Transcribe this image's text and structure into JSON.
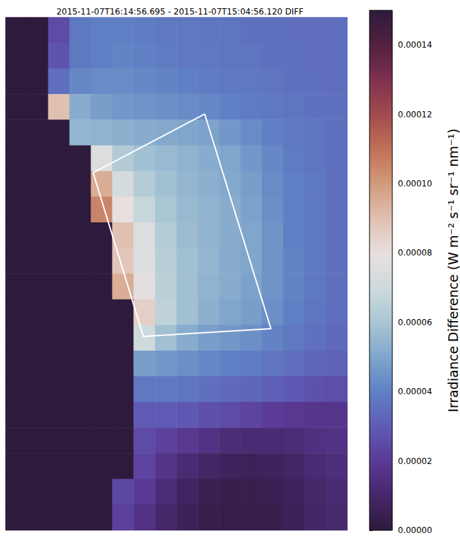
{
  "chart_data": {
    "type": "heatmap",
    "title": "2015-11-07T16:14:56.695 - 2015-11-07T15:04:56.120 DIFF",
    "tick_labels": false,
    "cells": [
      [
        0,
        0,
        2.5e-05,
        3.8e-05,
        4e-05,
        4e-05,
        3.9e-05,
        3.8e-05,
        3.8e-05,
        3.7e-05,
        3.7e-05,
        3.6e-05,
        3.6e-05,
        3.5e-05,
        3.5e-05,
        3.5e-05
      ],
      [
        0,
        0,
        2.8e-05,
        3.8e-05,
        4e-05,
        4.1e-05,
        4e-05,
        3.9e-05,
        3.8e-05,
        3.8e-05,
        3.7e-05,
        3.7e-05,
        3.6e-05,
        3.6e-05,
        3.5e-05,
        3.5e-05
      ],
      [
        0,
        0,
        3.5e-05,
        4.2e-05,
        4.3e-05,
        4.3e-05,
        4.2e-05,
        4.1e-05,
        4e-05,
        3.9e-05,
        3.8e-05,
        3.8e-05,
        3.7e-05,
        3.6e-05,
        3.6e-05,
        3.5e-05
      ],
      [
        0,
        0,
        9e-05,
        5.2e-05,
        4.8e-05,
        4.6e-05,
        4.5e-05,
        4.4e-05,
        4.3e-05,
        4.2e-05,
        4e-05,
        3.9e-05,
        3.8e-05,
        3.7e-05,
        3.6e-05,
        3.6e-05
      ],
      [
        0,
        0,
        0,
        5.5e-05,
        5.4e-05,
        5.3e-05,
        5.2e-05,
        5.1e-05,
        5e-05,
        4.9e-05,
        4.6e-05,
        4.3e-05,
        4e-05,
        3.8e-05,
        3.7e-05,
        3.6e-05
      ],
      [
        0,
        0,
        0,
        0,
        7.5e-05,
        6.2e-05,
        5.8e-05,
        5.6e-05,
        5.4e-05,
        5.2e-05,
        5e-05,
        4.6e-05,
        4.2e-05,
        3.9e-05,
        3.7e-05,
        3.6e-05
      ],
      [
        0,
        0,
        0,
        0,
        9.5e-05,
        7.2e-05,
        6.3e-05,
        5.8e-05,
        5.5e-05,
        5.3e-05,
        5.1e-05,
        4.8e-05,
        4.3e-05,
        4e-05,
        3.8e-05,
        3.6e-05
      ],
      [
        0,
        0,
        0,
        0,
        0.000105,
        8e-05,
        6.8e-05,
        6e-05,
        5.6e-05,
        5.4e-05,
        5.2e-05,
        4.9e-05,
        4.4e-05,
        4e-05,
        3.8e-05,
        3.6e-05
      ],
      [
        0,
        0,
        0,
        0,
        0,
        9e-05,
        7.5e-05,
        6.3e-05,
        5.7e-05,
        5.4e-05,
        5.2e-05,
        5e-05,
        4.5e-05,
        4e-05,
        3.8e-05,
        3.6e-05
      ],
      [
        0,
        0,
        0,
        0,
        0,
        8.8e-05,
        7.5e-05,
        6.4e-05,
        5.8e-05,
        5.5e-05,
        5.2e-05,
        5e-05,
        4.5e-05,
        4.1e-05,
        3.8e-05,
        3.6e-05
      ],
      [
        0,
        0,
        0,
        0,
        0,
        9.5e-05,
        7.8e-05,
        6.5e-05,
        5.8e-05,
        5.4e-05,
        5.2e-05,
        4.9e-05,
        4.5e-05,
        4.1e-05,
        3.8e-05,
        3.6e-05
      ],
      [
        0,
        0,
        0,
        0,
        0,
        0,
        8.5e-05,
        6.6e-05,
        5.8e-05,
        5.3e-05,
        5e-05,
        4.8e-05,
        4.4e-05,
        4e-05,
        3.7e-05,
        3.5e-05
      ],
      [
        0,
        0,
        0,
        0,
        0,
        0,
        7e-05,
        5.8e-05,
        5.2e-05,
        4.8e-05,
        4.6e-05,
        4.4e-05,
        4.1e-05,
        3.8e-05,
        3.6e-05,
        3.4e-05
      ],
      [
        0,
        0,
        0,
        0,
        0,
        0,
        4.8e-05,
        4.6e-05,
        4.4e-05,
        4.2e-05,
        4e-05,
        3.9e-05,
        3.7e-05,
        3.5e-05,
        3.3e-05,
        3.2e-05
      ],
      [
        0,
        0,
        0,
        0,
        0,
        0,
        3.8e-05,
        3.8e-05,
        3.7e-05,
        3.6e-05,
        3.4e-05,
        3.3e-05,
        3.1e-05,
        2.9e-05,
        2.7e-05,
        2.6e-05
      ],
      [
        0,
        0,
        0,
        0,
        0,
        0,
        3e-05,
        3e-05,
        2.9e-05,
        2.7e-05,
        2.5e-05,
        2.3e-05,
        2.1e-05,
        1.9e-05,
        1.8e-05,
        1.8e-05
      ],
      [
        0,
        0,
        0,
        0,
        0,
        0,
        2.5e-05,
        2.2e-05,
        1.9e-05,
        1.6e-05,
        1.3e-05,
        1.2e-05,
        1.2e-05,
        1.3e-05,
        1.5e-05,
        1.6e-05
      ],
      [
        0,
        0,
        0,
        0,
        0,
        0,
        2.3e-05,
        1.7e-05,
        1.2e-05,
        9e-06,
        7e-06,
        6e-06,
        7e-06,
        9e-06,
        1.2e-05,
        1.4e-05
      ],
      [
        0,
        0,
        0,
        0,
        0,
        2.4e-05,
        2e-05,
        1.3e-05,
        8e-06,
        5e-06,
        4e-06,
        4e-06,
        5e-06,
        7e-06,
        1e-05,
        1.2e-05
      ],
      [
        0,
        0,
        0,
        0,
        0,
        2.2e-05,
        1.6e-05,
        1e-05,
        6e-06,
        4e-06,
        3e-06,
        3e-06,
        4e-06,
        6e-06,
        9e-06,
        1.1e-05
      ]
    ],
    "colorbar": {
      "label": "Irradiance Difference (W m⁻² s⁻¹ sr⁻¹ nm⁻¹)",
      "range": [
        0,
        0.00015
      ],
      "ticks": [
        {
          "value": 0,
          "label": "0.00000"
        },
        {
          "value": 2e-05,
          "label": "0.00002"
        },
        {
          "value": 4e-05,
          "label": "0.00004"
        },
        {
          "value": 6e-05,
          "label": "0.00006"
        },
        {
          "value": 8e-05,
          "label": "0.00008"
        },
        {
          "value": 0.0001,
          "label": "0.00010"
        },
        {
          "value": 0.00012,
          "label": "0.00012"
        },
        {
          "value": 0.00014,
          "label": "0.00014"
        }
      ],
      "colors": [
        "#2e1a3c",
        "#45276a",
        "#5a3a95",
        "#5f5bb5",
        "#5f80c4",
        "#80a6cc",
        "#a9c6d4",
        "#cfdadc",
        "#e8dfe0",
        "#e0c0b0",
        "#d29a7c",
        "#c07058",
        "#a24b4e",
        "#7e3150",
        "#52213f",
        "#2e1a3c"
      ]
    },
    "outline": {
      "color": "#ffffff",
      "points": [
        [
          9.32,
          3.77
        ],
        [
          4.1,
          6.06
        ],
        [
          6.45,
          12.44
        ],
        [
          12.42,
          12.14
        ]
      ]
    }
  }
}
